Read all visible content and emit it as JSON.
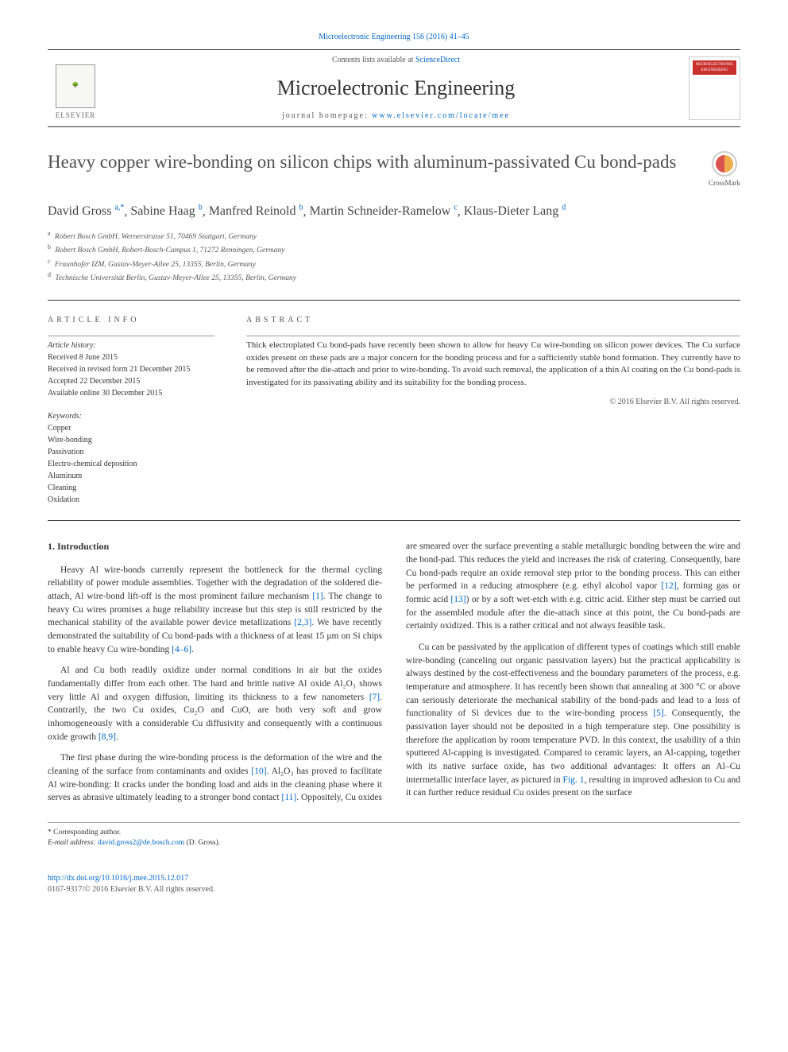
{
  "top_link": {
    "journal": "Microelectronic Engineering",
    "citation": "156 (2016) 41–45"
  },
  "header": {
    "contents_prefix": "Contents lists available at ",
    "contents_link": "ScienceDirect",
    "journal_name": "Microelectronic Engineering",
    "homepage_prefix": "journal homepage: ",
    "homepage_url": "www.elsevier.com/locate/mee",
    "elsevier_label": "ELSEVIER",
    "cover_label": "MICROELECTRONIC ENGINEERING"
  },
  "title": "Heavy copper wire-bonding on silicon chips with aluminum-passivated Cu bond-pads",
  "crossmark_label": "CrossMark",
  "authors": [
    {
      "name": "David Gross",
      "aff": "a,",
      "corr": "*"
    },
    {
      "name": "Sabine Haag",
      "aff": "b"
    },
    {
      "name": "Manfred Reinold",
      "aff": "b"
    },
    {
      "name": "Martin Schneider-Ramelow",
      "aff": "c"
    },
    {
      "name": "Klaus-Dieter Lang",
      "aff": "d"
    }
  ],
  "affiliations": [
    {
      "key": "a",
      "text": "Robert Bosch GmbH, Wernerstrasse 51, 70469 Stuttgart, Germany"
    },
    {
      "key": "b",
      "text": "Robert Bosch GmbH, Robert-Bosch-Campus 1, 71272 Renningen, Germany"
    },
    {
      "key": "c",
      "text": "Fraunhofer IZM, Gustav-Meyer-Allee 25, 13355, Berlin, Germany"
    },
    {
      "key": "d",
      "text": "Technische Universität Berlin, Gustav-Meyer-Allee 25, 13355, Berlin, Germany"
    }
  ],
  "info": {
    "heading": "article info",
    "history_label": "Article history:",
    "history": [
      "Received 8 June 2015",
      "Received in revised form 21 December 2015",
      "Accepted 22 December 2015",
      "Available online 30 December 2015"
    ],
    "keywords_label": "Keywords:",
    "keywords": [
      "Copper",
      "Wire-bonding",
      "Passivation",
      "Electro-chemical deposition",
      "Aluminum",
      "Cleaning",
      "Oxidation"
    ]
  },
  "abstract": {
    "heading": "abstract",
    "text": "Thick electroplated Cu bond-pads have recently been shown to allow for heavy Cu wire-bonding on silicon power devices. The Cu surface oxides present on these pads are a major concern for the bonding process and for a sufficiently stable bond formation. They currently have to be removed after the die-attach and prior to wire-bonding. To avoid such removal, the application of a thin Al coating on the Cu bond-pads is investigated for its passivating ability and its suitability for the bonding process.",
    "copyright": "© 2016 Elsevier B.V. All rights reserved."
  },
  "body": {
    "section_heading": "1. Introduction",
    "p1a": "Heavy Al wire-bonds currently represent the bottleneck for the thermal cycling reliability of power module assemblies. Together with the degradation of the soldered die-attach, Al wire-bond lift-off is the most prominent failure mechanism ",
    "ref1": "[1]",
    "p1b": ". The change to heavy Cu wires promises a huge reliability increase but this step is still restricted by the mechanical stability of the available power device metallizations ",
    "ref23": "[2,3]",
    "p1c": ". We have recently demonstrated the suitability of Cu bond-pads with a thickness of at least 15 μm on Si chips to enable heavy Cu wire-bonding ",
    "ref46": "[4–6]",
    "p1d": ".",
    "p2a": "Al and Cu both readily oxidize under normal conditions in air but the oxides fundamentally differ from each other. The hard and brittle native Al oxide Al₂O₃ shows very little Al and oxygen diffusion, limiting its thickness to a few nanometers ",
    "ref7": "[7]",
    "p2b": ". Contrarily, the two Cu oxides, Cu₂O and CuO, are both very soft and grow inhomogeneously with a considerable Cu diffusivity and consequently with a continuous oxide growth ",
    "ref89": "[8,9]",
    "p2c": ".",
    "p3a": "The first phase during the wire-bonding process is the deformation of the wire and the cleaning of the surface from contaminants and oxides ",
    "ref10": "[10]",
    "p3b": ". Al₂O₃ has proved to facilitate Al wire-bonding: It cracks under the bonding load and aids in the cleaning phase where it serves ",
    "p4a": "as abrasive ultimately leading to a stronger bond contact ",
    "ref11": "[11]",
    "p4b": ". Oppositely, Cu oxides are smeared over the surface preventing a stable metallurgic bonding between the wire and the bond-pad. This reduces the yield and increases the risk of cratering. Consequently, bare Cu bond-pads require an oxide removal step prior to the bonding process. This can either be performed in a reducing atmosphere (e.g. ethyl alcohol vapor ",
    "ref12": "[12]",
    "p4c": ", forming gas or formic acid ",
    "ref13": "[13]",
    "p4d": ") or by a soft wet-etch with e.g. citric acid. Either step must be carried out for the assembled module after the die-attach since at this point, the Cu bond-pads are certainly oxidized. This is a rather critical and not always feasible task.",
    "p5a": "Cu can be passivated by the application of different types of coatings which still enable wire-bonding (canceling out organic passivation layers) but the practical applicability is always destined by the cost-effectiveness and the boundary parameters of the process, e.g. temperature and atmosphere. It has recently been shown that annealing at 300 °C or above can seriously deteriorate the mechanical stability of the bond-pads and lead to a loss of functionality of Si devices due to the wire-bonding process ",
    "ref5": "[5]",
    "p5b": ". Consequently, the passivation layer should not be deposited in a high temperature step. One possibility is therefore the application by room temperature PVD. In this context, the usability of a thin sputtered Al-capping is investigated. Compared to ceramic layers, an Al-capping, together with its native surface oxide, has two additional advantages: It offers an Al–Cu intermetallic interface layer, as pictured in ",
    "fig1": "Fig. 1",
    "p5c": ", resulting in improved adhesion to Cu and it can further reduce residual Cu oxides present on the surface"
  },
  "footnotes": {
    "corr_label": "* Corresponding author.",
    "email_label": "E-mail address: ",
    "email": "david.gross2@de.bosch.com",
    "email_person": " (D. Gross)."
  },
  "footer": {
    "doi": "http://dx.doi.org/10.1016/j.mee.2015.12.017",
    "issn_line": "0167-9317/© 2016 Elsevier B.V. All rights reserved."
  },
  "colors": {
    "link": "#0066cc",
    "text": "#333333",
    "muted": "#555555",
    "rule": "#333333"
  }
}
